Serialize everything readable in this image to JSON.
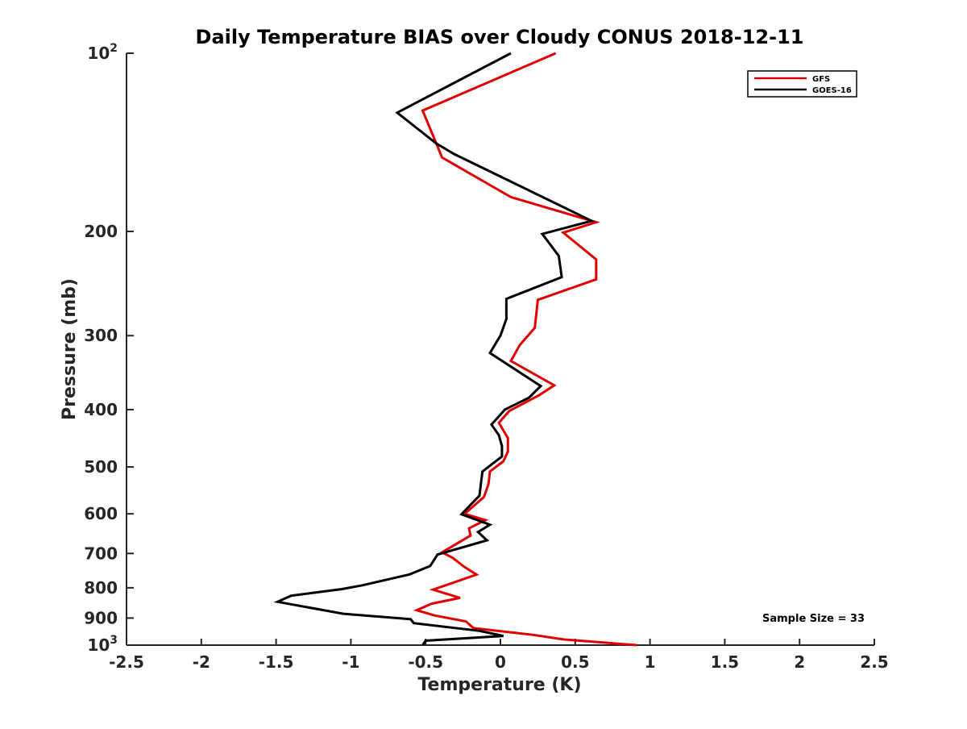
{
  "chart_data": {
    "type": "line",
    "title": "Daily Temperature BIAS over Cloudy CONUS 2018-12-11",
    "xlabel": "Temperature (K)",
    "ylabel": "Pressure (mb)",
    "xlim": [
      -2.5,
      2.5
    ],
    "ylim": [
      100,
      1000
    ],
    "y_scale": "log",
    "y_reversed": true,
    "grid": false,
    "legend_position": "top-right",
    "x_ticks": [
      {
        "value": -2.5,
        "label": "-2.5"
      },
      {
        "value": -2,
        "label": "-2"
      },
      {
        "value": -1.5,
        "label": "-1.5"
      },
      {
        "value": -1,
        "label": "-1"
      },
      {
        "value": -0.5,
        "label": "-0.5"
      },
      {
        "value": 0,
        "label": "0"
      },
      {
        "value": 0.5,
        "label": "0.5"
      },
      {
        "value": 1,
        "label": "1"
      },
      {
        "value": 1.5,
        "label": "1.5"
      },
      {
        "value": 2,
        "label": "2"
      },
      {
        "value": 2.5,
        "label": "2.5"
      }
    ],
    "y_ticks": [
      {
        "value": 100,
        "base": "10",
        "exp": "2"
      },
      {
        "value": 200,
        "label": "200"
      },
      {
        "value": 300,
        "label": "300"
      },
      {
        "value": 400,
        "label": "400"
      },
      {
        "value": 500,
        "label": "500"
      },
      {
        "value": 600,
        "label": "600"
      },
      {
        "value": 700,
        "label": "700"
      },
      {
        "value": 800,
        "label": "800"
      },
      {
        "value": 900,
        "label": "900"
      },
      {
        "value": 1000,
        "base": "10",
        "exp": "3"
      }
    ],
    "annotation": "Sample Size = 33",
    "series": [
      {
        "name": "GFS",
        "color": "#e00000",
        "points": [
          {
            "x": 0.37,
            "p": 100
          },
          {
            "x": -0.52,
            "p": 125
          },
          {
            "x": -0.39,
            "p": 150
          },
          {
            "x": 0.07,
            "p": 175
          },
          {
            "x": 0.64,
            "p": 193
          },
          {
            "x": 0.42,
            "p": 201
          },
          {
            "x": 0.64,
            "p": 223
          },
          {
            "x": 0.64,
            "p": 241
          },
          {
            "x": 0.25,
            "p": 261
          },
          {
            "x": 0.23,
            "p": 291
          },
          {
            "x": 0.13,
            "p": 311
          },
          {
            "x": 0.07,
            "p": 331
          },
          {
            "x": 0.36,
            "p": 364
          },
          {
            "x": 0.26,
            "p": 378
          },
          {
            "x": 0.06,
            "p": 402
          },
          {
            "x": -0.01,
            "p": 421
          },
          {
            "x": 0.05,
            "p": 447
          },
          {
            "x": 0.05,
            "p": 471
          },
          {
            "x": 0.02,
            "p": 489
          },
          {
            "x": -0.07,
            "p": 509
          },
          {
            "x": -0.08,
            "p": 534
          },
          {
            "x": -0.11,
            "p": 562
          },
          {
            "x": -0.24,
            "p": 600
          },
          {
            "x": -0.1,
            "p": 615
          },
          {
            "x": -0.21,
            "p": 635
          },
          {
            "x": -0.2,
            "p": 653
          },
          {
            "x": -0.39,
            "p": 697
          },
          {
            "x": -0.32,
            "p": 712
          },
          {
            "x": -0.24,
            "p": 738
          },
          {
            "x": -0.16,
            "p": 760
          },
          {
            "x": -0.3,
            "p": 782
          },
          {
            "x": -0.45,
            "p": 806
          },
          {
            "x": -0.27,
            "p": 832
          },
          {
            "x": -0.46,
            "p": 851
          },
          {
            "x": -0.56,
            "p": 873
          },
          {
            "x": -0.44,
            "p": 891
          },
          {
            "x": -0.23,
            "p": 912
          },
          {
            "x": -0.18,
            "p": 936
          },
          {
            "x": 0.22,
            "p": 961
          },
          {
            "x": 0.42,
            "p": 978
          },
          {
            "x": 0.91,
            "p": 1000
          }
        ]
      },
      {
        "name": "GOES-16",
        "color": "#000000",
        "points": [
          {
            "x": 0.07,
            "p": 100
          },
          {
            "x": -0.69,
            "p": 126
          },
          {
            "x": -0.43,
            "p": 142
          },
          {
            "x": -0.31,
            "p": 148
          },
          {
            "x": 0.61,
            "p": 192
          },
          {
            "x": 0.28,
            "p": 202
          },
          {
            "x": 0.39,
            "p": 220
          },
          {
            "x": 0.41,
            "p": 239
          },
          {
            "x": 0.04,
            "p": 260
          },
          {
            "x": 0.04,
            "p": 281
          },
          {
            "x": 0.0,
            "p": 300
          },
          {
            "x": -0.07,
            "p": 321
          },
          {
            "x": 0.27,
            "p": 365
          },
          {
            "x": 0.19,
            "p": 382
          },
          {
            "x": 0.03,
            "p": 400
          },
          {
            "x": -0.06,
            "p": 424
          },
          {
            "x": -0.01,
            "p": 442
          },
          {
            "x": 0.01,
            "p": 461
          },
          {
            "x": 0.01,
            "p": 480
          },
          {
            "x": -0.12,
            "p": 509
          },
          {
            "x": -0.13,
            "p": 532
          },
          {
            "x": -0.14,
            "p": 559
          },
          {
            "x": -0.26,
            "p": 601
          },
          {
            "x": -0.07,
            "p": 626
          },
          {
            "x": -0.15,
            "p": 644
          },
          {
            "x": -0.09,
            "p": 665
          },
          {
            "x": -0.42,
            "p": 703
          },
          {
            "x": -0.47,
            "p": 735
          },
          {
            "x": -0.61,
            "p": 760
          },
          {
            "x": -0.92,
            "p": 792
          },
          {
            "x": -1.06,
            "p": 804
          },
          {
            "x": -1.4,
            "p": 825
          },
          {
            "x": -1.49,
            "p": 845
          },
          {
            "x": -1.05,
            "p": 885
          },
          {
            "x": -0.6,
            "p": 904
          },
          {
            "x": -0.58,
            "p": 918
          },
          {
            "x": -0.14,
            "p": 946
          },
          {
            "x": 0.02,
            "p": 965
          },
          {
            "x": -0.5,
            "p": 983
          },
          {
            "x": -0.52,
            "p": 1000
          }
        ]
      }
    ]
  }
}
